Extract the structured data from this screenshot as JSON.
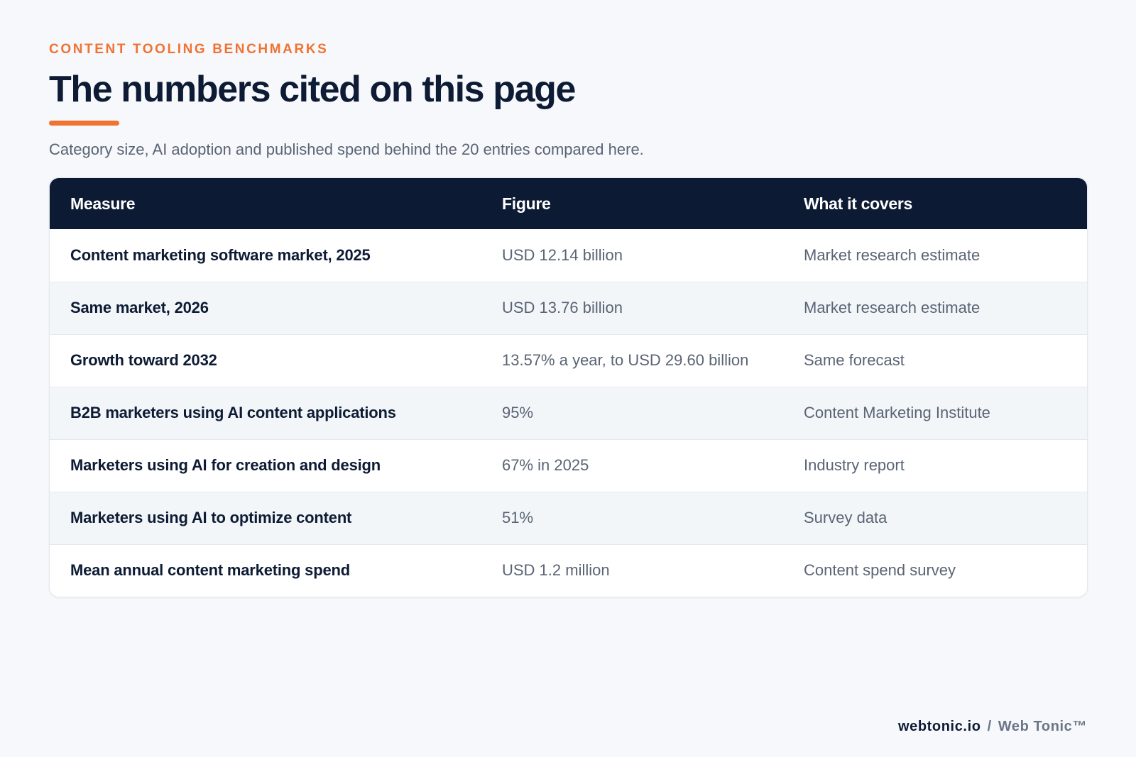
{
  "header": {
    "eyebrow": "CONTENT TOOLING BENCHMARKS",
    "title": "The numbers cited on this page",
    "subtitle": "Category size, AI adoption and published spend behind the 20 entries compared here."
  },
  "table": {
    "columns": [
      "Measure",
      "Figure",
      "What it covers"
    ],
    "rows": [
      {
        "measure": "Content marketing software market, 2025",
        "figure": "USD 12.14 billion",
        "covers": "Market research estimate"
      },
      {
        "measure": "Same market, 2026",
        "figure": "USD 13.76 billion",
        "covers": "Market research estimate"
      },
      {
        "measure": "Growth toward 2032",
        "figure": "13.57% a year, to USD 29.60 billion",
        "covers": "Same forecast"
      },
      {
        "measure": "B2B marketers using AI content applications",
        "figure": "95%",
        "covers": "Content Marketing Institute"
      },
      {
        "measure": "Marketers using AI for creation and design",
        "figure": "67% in 2025",
        "covers": "Industry report"
      },
      {
        "measure": "Marketers using AI to optimize content",
        "figure": "51%",
        "covers": "Survey data"
      },
      {
        "measure": "Mean annual content marketing spend",
        "figure": "USD 1.2 million",
        "covers": "Content spend survey"
      }
    ]
  },
  "footer": {
    "domain": "webtonic.io",
    "separator": "/",
    "brand": "Web Tonic™"
  },
  "colors": {
    "accent": "#f07332",
    "header_bg": "#0c1a34",
    "page_bg": "#f6f8fb"
  }
}
